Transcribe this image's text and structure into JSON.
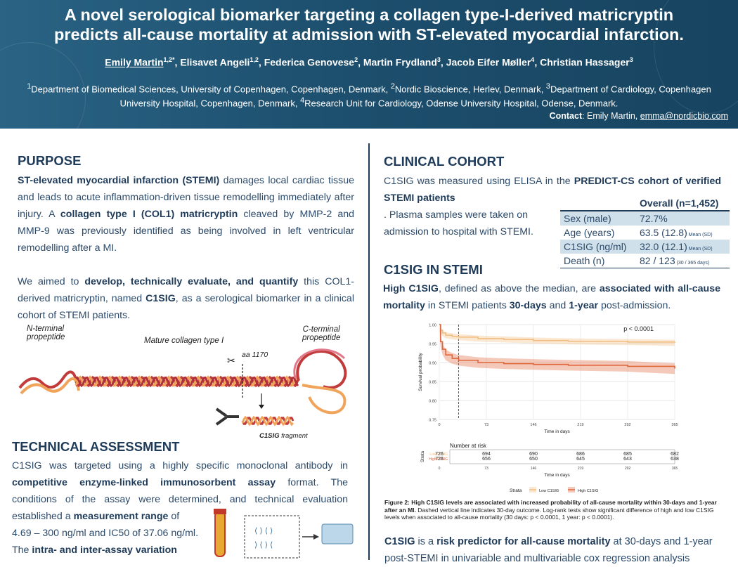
{
  "header": {
    "title_line1": "A novel serological biomarker targeting a collagen type-I-derived matricryptin",
    "title_line2": "predicts all-cause mortality at admission with ST-elevated myocardial infarction.",
    "authors": [
      {
        "name": "Emily Martin",
        "sup": "1,2*"
      },
      {
        "name": "Elisavet Angeli",
        "sup": "1,2"
      },
      {
        "name": "Federica Genovese",
        "sup": "2"
      },
      {
        "name": "Martin Frydland",
        "sup": "3"
      },
      {
        "name": "Jacob Eifer Møller",
        "sup": "4"
      },
      {
        "name": "Christian Hassager",
        "sup": "3"
      }
    ],
    "affil_1": "Department of Biomedical Sciences, University of Copenhagen, Copenhagen, Denmark, ",
    "affil_2": "Nordic Bioscience, Herlev, Denmark, ",
    "affil_3": "Department of Cardiology, Copenhagen University Hospital, Copenhagen, Denmark, ",
    "affil_4": "Research Unit for Cardiology, Odense University Hospital, Odense, Denmark.",
    "contact_label": "Contact",
    "contact_name": ": Emily Martin, ",
    "contact_email": "emma@nordicbio.com"
  },
  "purpose": {
    "heading": "PURPOSE",
    "p1_b1": "ST-elevated myocardial infarction (STEMI)",
    "p1_t1": " damages local cardiac tissue and leads to acute inflammation-driven tissue remodelling immediately after injury. A ",
    "p1_b2": "collagen type I (COL1) matricryptin",
    "p1_t2": " cleaved by MMP-2 and MMP-9 was previously identified as being involved in left ventricular remodelling after a MI.",
    "p2_t1": "We aimed to ",
    "p2_b1": "develop, technically evaluate, and quantify",
    "p2_t2": " this COL1-derived matricryptin, named ",
    "p2_b2": "C1SIG",
    "p2_t3": ", as a serological biomarker in a clinical cohort of STEMI patients."
  },
  "figure1": {
    "n_term_1": "N-terminal",
    "n_term_2": "propeptide",
    "mature": "Mature collagen type I",
    "c_term_1": "C-terminal",
    "c_term_2": "propeptide",
    "cleave": "aa 1170",
    "fragment_bold": "C1SIG",
    "fragment_rest": " fragment"
  },
  "technical": {
    "heading": "TECHNICAL ASSESSMENT",
    "t1": "C1SIG was targeted using a highly specific monoclonal antibody in ",
    "b1": "competitive enzyme-linked immunosorbent assay",
    "t2": " format. The conditions of the assay were determined, and technical evaluation established a ",
    "b2": "measurement range",
    "t3": " of",
    "line2": "4.69 – 300 ng/ml and IC50 of 37.06 ng/ml.",
    "t4": "The ",
    "b3": "intra- and inter-assay variation"
  },
  "cohort": {
    "heading": "CLINICAL COHORT",
    "t1": "C1SIG was measured using ELISA in the ",
    "b1": "PREDICT-CS cohort of verified STEMI patients",
    "t2": ". Plasma samples were taken on admission to hospital with STEMI.",
    "table_header": "Overall (n=1,452)",
    "rows": [
      {
        "label": "Sex (male)",
        "value": "72.7%",
        "note": ""
      },
      {
        "label": "Age (years)",
        "value": "63.5 (12.8)",
        "note": "Mean (SD)"
      },
      {
        "label": "C1SIG (ng/ml)",
        "value": "32.0 (12.1)",
        "note": "Mean (SD)"
      },
      {
        "label": "Death (n)",
        "value": "82 / 123",
        "note": "(30 / 365 days)"
      }
    ]
  },
  "c1sig_stemi": {
    "heading": "C1SIG IN STEMI",
    "b1": "High C1SIG",
    "t1": ", defined as above the median, are ",
    "b2": "associated with all-cause mortality",
    "t2": " in STEMI patients ",
    "b3": "30-days",
    "t3": " and ",
    "b4": "1-year",
    "t4": " post-admission."
  },
  "chart_data": {
    "type": "line",
    "pvalue": "p < 0.0001",
    "xlabel": "Time in days",
    "ylabel": "Survival probability",
    "xlim": [
      0,
      365
    ],
    "ylim": [
      0.75,
      1.0
    ],
    "x_ticks": [
      0,
      73,
      146,
      219,
      292,
      365
    ],
    "y_ticks": [
      0.75,
      0.8,
      0.85,
      0.9,
      0.95,
      1.0
    ],
    "y_tick_labels": [
      "0.75",
      "0.80",
      "0.85",
      "0.90",
      "0.95",
      "1.00"
    ],
    "vline_day": 30,
    "series": [
      {
        "name": "Low C1SIG",
        "color": "#f1bd80",
        "x": [
          0,
          2,
          5,
          10,
          20,
          30,
          60,
          100,
          146,
          200,
          292,
          365
        ],
        "y": [
          1.0,
          0.985,
          0.978,
          0.972,
          0.969,
          0.967,
          0.963,
          0.961,
          0.958,
          0.956,
          0.954,
          0.952
        ],
        "ci_halfwidth": 0.008
      },
      {
        "name": "High C1SIG",
        "color": "#e0653a",
        "x": [
          0,
          2,
          5,
          10,
          20,
          30,
          60,
          100,
          146,
          200,
          292,
          365
        ],
        "y": [
          1.0,
          0.955,
          0.935,
          0.92,
          0.911,
          0.906,
          0.9,
          0.897,
          0.895,
          0.893,
          0.89,
          0.884
        ],
        "ci_halfwidth": 0.014
      }
    ],
    "legend_title": "Strata",
    "risk_table": {
      "title": "Number at risk",
      "strata_label": "Strata",
      "xlabel": "Time in days",
      "rows": [
        {
          "name": "Low C1SIG",
          "color": "#f1bd80",
          "values": [
            726,
            694,
            690,
            686,
            685,
            682
          ]
        },
        {
          "name": "High C1SIG",
          "color": "#e0653a",
          "values": [
            726,
            656,
            650,
            645,
            643,
            638
          ]
        }
      ]
    }
  },
  "caption": {
    "bold": "Figure 2: High C1SIG levels are associated with increased probability of all-cause mortality within 30-days and 1-year after an MI.",
    "rest": " Dashed vertical line indicates 30-day outcome. Log-rank tests show significant difference of high and low C1SIG levels when associated to all-cause mortality (30 days: p < 0.0001, 1 year: p < 0.0001)."
  },
  "risk_predictor": {
    "b1": "C1SIG",
    "t1": " is a ",
    "b2": "risk predictor for all-cause mortality",
    "t2": " at 30-days and 1-year",
    "line2": "post-STEMI in univariable and multivariable cox regression analysis"
  }
}
